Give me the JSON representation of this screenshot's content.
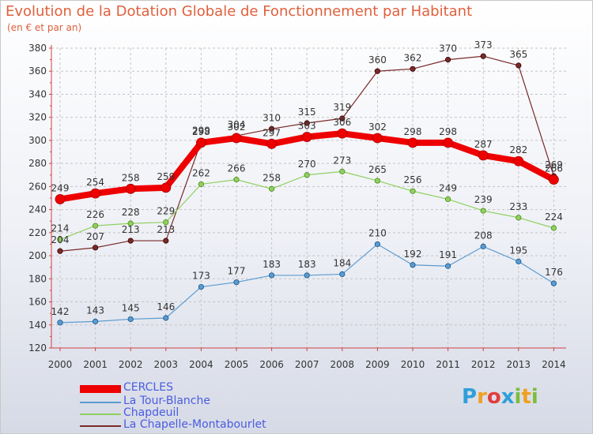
{
  "title": "Evolution de la Dotation Globale de Fonctionnement par Habitant",
  "subtitle": "(en € et par an)",
  "logo": {
    "text": "Proxiti",
    "letters": [
      "P",
      "r",
      "o",
      "x",
      "i",
      "t",
      "i"
    ],
    "colors": [
      "#2f9fd8",
      "#f0a020",
      "#e23c3c",
      "#2f9fd8",
      "#7cbd3b",
      "#f0a020",
      "#7cbd3b"
    ]
  },
  "chart_data": {
    "type": "line",
    "title": "Evolution de la Dotation Globale de Fonctionnement par Habitant",
    "subtitle": "(en € et par an)",
    "xlabel": "",
    "ylabel": "",
    "ylim": [
      120,
      380
    ],
    "y_ticks": [
      "120",
      "140",
      "160",
      "180",
      "200",
      "220",
      "240",
      "260",
      "280",
      "300",
      "320",
      "340",
      "360",
      "380"
    ],
    "x": [
      "2000",
      "2001",
      "2002",
      "2003",
      "2004",
      "2005",
      "2006",
      "2007",
      "2008",
      "2009",
      "2010",
      "2011",
      "2012",
      "2013",
      "2014"
    ],
    "grid": true,
    "legend_position": "bottom-left",
    "series": [
      {
        "name": "CERCLES",
        "color": "#ee0000",
        "values": [
          249,
          254,
          258,
          259,
          298,
          302,
          297,
          303,
          306,
          302,
          298,
          298,
          287,
          282,
          266
        ]
      },
      {
        "name": "La Tour-Blanche",
        "color": "#5b9bd0",
        "values": [
          142,
          143,
          145,
          146,
          173,
          177,
          183,
          183,
          184,
          210,
          192,
          191,
          208,
          195,
          176
        ]
      },
      {
        "name": "Chapdeuil",
        "color": "#90d060",
        "values": [
          214,
          226,
          228,
          229,
          262,
          266,
          258,
          270,
          273,
          265,
          256,
          249,
          239,
          233,
          224
        ]
      },
      {
        "name": "La Chapelle-Montabourlet",
        "color": "#7a2a2a",
        "values": [
          204,
          207,
          213,
          213,
          299,
          304,
          310,
          315,
          319,
          360,
          362,
          370,
          373,
          365,
          269
        ]
      }
    ]
  }
}
